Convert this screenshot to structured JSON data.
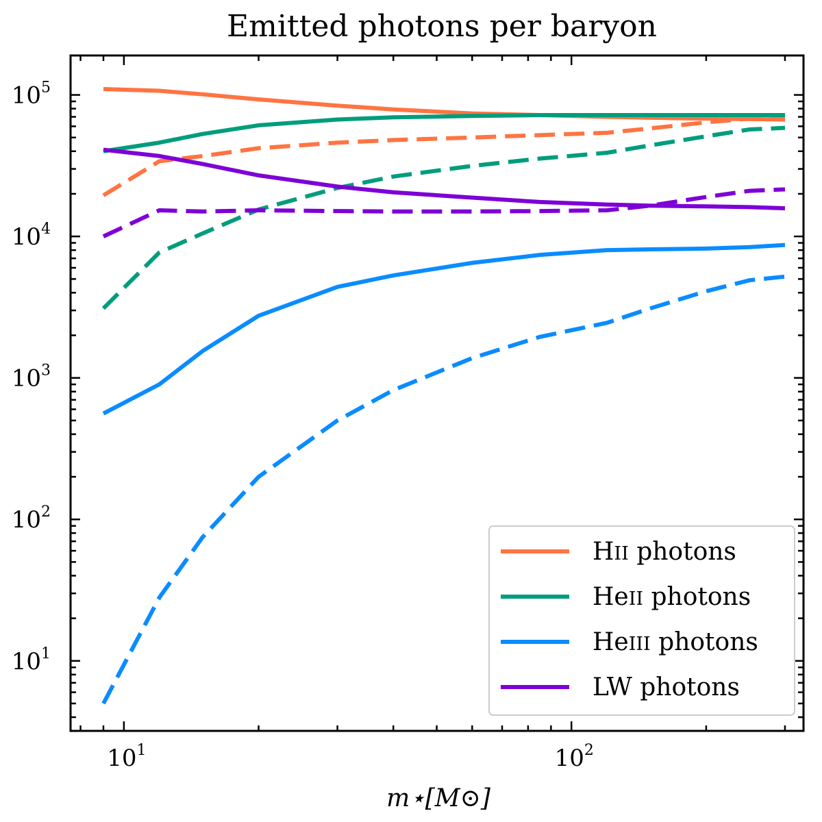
{
  "chart_data": {
    "type": "line",
    "title": "Emitted photons per baryon",
    "xlabel": "m⋆[M⊙]",
    "ylabel": "",
    "xscale": "log",
    "yscale": "log",
    "xlim": [
      7.6,
      330
    ],
    "ylim": [
      3.2,
      190000
    ],
    "x_major_ticks": [
      {
        "value": 10,
        "base": "10",
        "exp": "1"
      },
      {
        "value": 100,
        "base": "10",
        "exp": "2"
      }
    ],
    "y_major_ticks": [
      {
        "value": 10,
        "base": "10",
        "exp": "1"
      },
      {
        "value": 100,
        "base": "10",
        "exp": "2"
      },
      {
        "value": 1000,
        "base": "10",
        "exp": "3"
      },
      {
        "value": 10000,
        "base": "10",
        "exp": "4"
      },
      {
        "value": 100000,
        "base": "10",
        "exp": "5"
      }
    ],
    "legend_position": "lower-right",
    "series": [
      {
        "name": "HII photons",
        "label_main": "H",
        "label_ion": "II",
        "label_rest": " photons",
        "color": "#FF7442",
        "solid": {
          "x": [
            9,
            12,
            15,
            20,
            30,
            40,
            60,
            85,
            120,
            150,
            200,
            250,
            300
          ],
          "y": [
            110000,
            107000,
            101000,
            93000,
            84000,
            79000,
            74000,
            72000,
            70000,
            69000,
            68000,
            67500,
            67000
          ]
        },
        "dashed": {
          "x": [
            9,
            12,
            15,
            20,
            30,
            40,
            60,
            85,
            120,
            150,
            200,
            250,
            300
          ],
          "y": [
            19500,
            34000,
            37000,
            42000,
            46000,
            48000,
            50000,
            52000,
            54000,
            58000,
            64000,
            68000,
            68500
          ]
        }
      },
      {
        "name": "HeII photons",
        "label_main": "He",
        "label_ion": "II",
        "label_rest": " photons",
        "color": "#009D7D",
        "solid": {
          "x": [
            9,
            12,
            15,
            20,
            30,
            40,
            60,
            85,
            120,
            150,
            200,
            250,
            300
          ],
          "y": [
            40000,
            46000,
            53000,
            61000,
            67000,
            69500,
            71000,
            72000,
            72000,
            72000,
            72000,
            72000,
            72000
          ]
        },
        "dashed": {
          "x": [
            9,
            12,
            15,
            20,
            30,
            40,
            60,
            85,
            120,
            150,
            200,
            250,
            300
          ],
          "y": [
            3100,
            7700,
            10500,
            15500,
            22000,
            26500,
            31500,
            35500,
            39000,
            44000,
            51000,
            57000,
            58500
          ]
        }
      },
      {
        "name": "HeIII photons",
        "label_main": "He",
        "label_ion": "III",
        "label_rest": " photons",
        "color": "#0A8CFF",
        "solid": {
          "x": [
            9,
            12,
            15,
            20,
            30,
            40,
            60,
            85,
            120,
            150,
            200,
            250,
            300
          ],
          "y": [
            560,
            900,
            1550,
            2750,
            4400,
            5300,
            6500,
            7400,
            8000,
            8100,
            8200,
            8400,
            8700
          ]
        },
        "dashed": {
          "x": [
            9,
            12,
            15,
            20,
            30,
            40,
            60,
            85,
            120,
            150,
            200,
            250,
            300
          ],
          "y": [
            5,
            28,
            75,
            200,
            500,
            820,
            1380,
            1950,
            2450,
            3100,
            4100,
            4900,
            5200
          ]
        }
      },
      {
        "name": "LW photons",
        "label_main": "LW",
        "label_ion": "",
        "label_rest": " photons",
        "color": "#7D00D6",
        "solid": {
          "x": [
            9,
            12,
            15,
            20,
            30,
            40,
            60,
            85,
            120,
            150,
            200,
            250,
            300
          ],
          "y": [
            41000,
            37000,
            32500,
            27000,
            22500,
            20500,
            18800,
            17500,
            16800,
            16500,
            16300,
            16100,
            15800
          ]
        },
        "dashed": {
          "x": [
            9,
            12,
            15,
            20,
            30,
            40,
            60,
            85,
            120,
            150,
            200,
            250,
            300
          ],
          "y": [
            10000,
            15300,
            15000,
            15300,
            15100,
            15000,
            15000,
            15100,
            15300,
            16500,
            19000,
            21000,
            21500
          ]
        }
      }
    ]
  }
}
